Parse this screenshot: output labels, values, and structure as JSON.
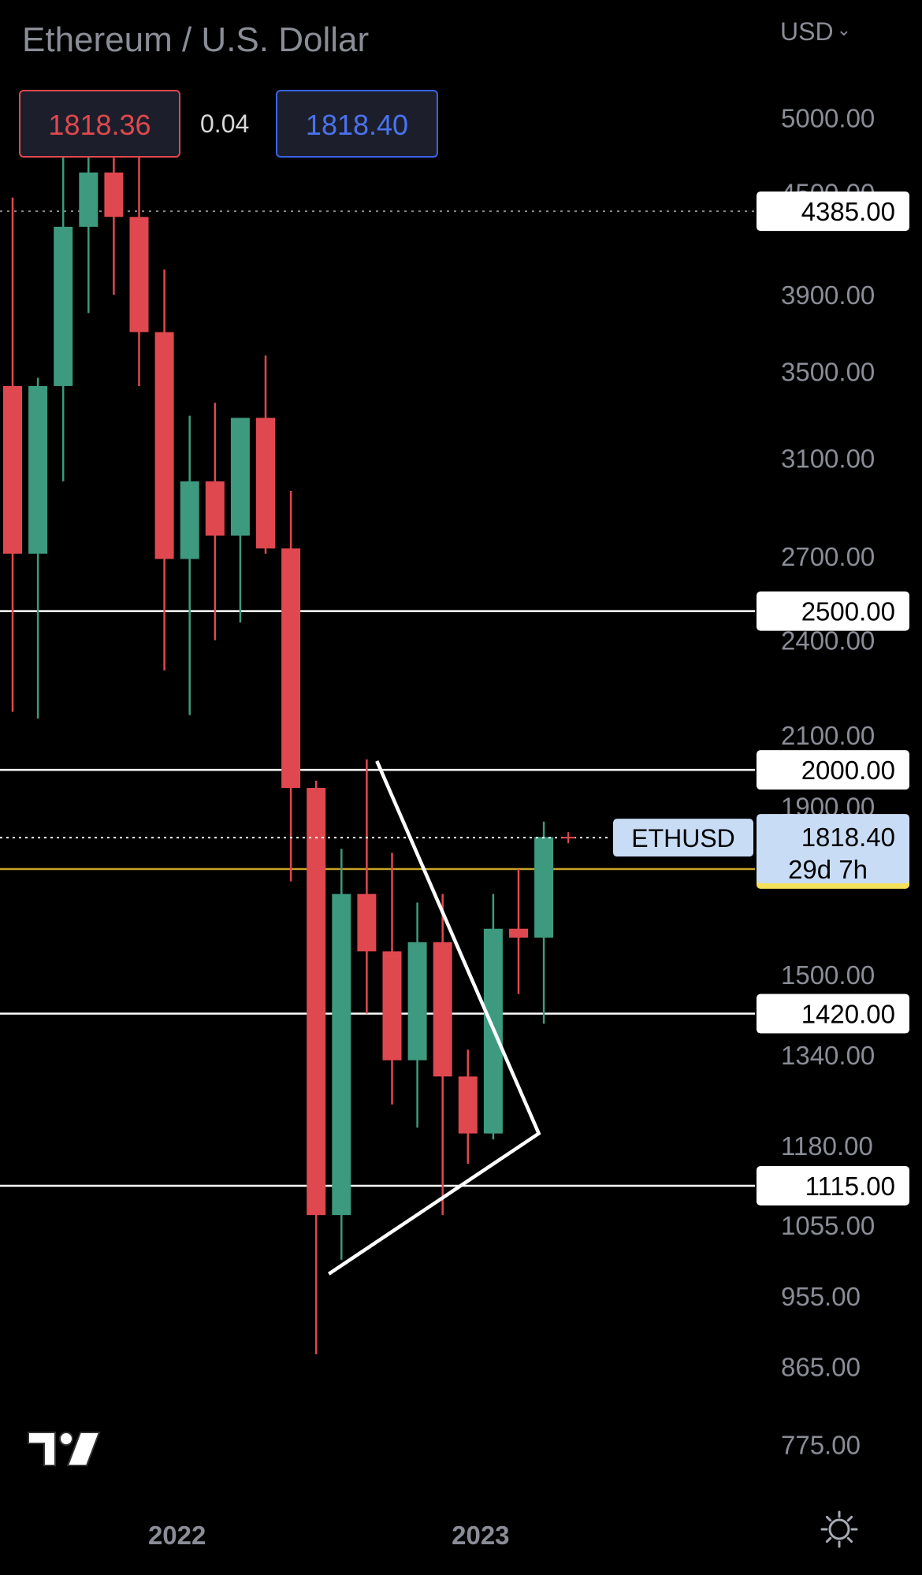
{
  "header": {
    "title": "Ethereum / U.S. Dollar",
    "currency": "USD",
    "bid": "1818.36",
    "spread": "0.04",
    "ask": "1818.40"
  },
  "chart_data": {
    "type": "candlestick",
    "title": "Ethereum / U.S. Dollar",
    "y_scale": "log",
    "ylim": [
      720,
      5400
    ],
    "x_ticks": [
      {
        "label": "2022",
        "index": 6.5
      },
      {
        "label": "2023",
        "index": 18.5
      }
    ],
    "y_ticks": [
      "5000.00",
      "4500.00",
      "3900.00",
      "3500.00",
      "3100.00",
      "2700.00",
      "2400.00",
      "2100.00",
      "1900.00",
      "1500.00",
      "1340.00",
      "1180.00",
      "1055.00",
      "955.00",
      "865.00",
      "775.00"
    ],
    "candles": [
      {
        "o": 3430,
        "h": 4470,
        "l": 2170,
        "c": 2710
      },
      {
        "o": 2710,
        "h": 3470,
        "l": 2150,
        "c": 3430
      },
      {
        "o": 3430,
        "h": 4780,
        "l": 3000,
        "c": 4290
      },
      {
        "o": 4290,
        "h": 4880,
        "l": 3800,
        "c": 4630
      },
      {
        "o": 4630,
        "h": 4890,
        "l": 3900,
        "c": 4350
      },
      {
        "o": 4350,
        "h": 4770,
        "l": 3430,
        "c": 3700
      },
      {
        "o": 3700,
        "h": 4040,
        "l": 2300,
        "c": 2690
      },
      {
        "o": 2690,
        "h": 3290,
        "l": 2160,
        "c": 3000
      },
      {
        "o": 3000,
        "h": 3350,
        "l": 2400,
        "c": 2780
      },
      {
        "o": 2780,
        "h": 3280,
        "l": 2460,
        "c": 3280
      },
      {
        "o": 3280,
        "h": 3580,
        "l": 2710,
        "c": 2730
      },
      {
        "o": 2730,
        "h": 2960,
        "l": 1710,
        "c": 1950
      },
      {
        "o": 1950,
        "h": 1970,
        "l": 880,
        "c": 1070
      },
      {
        "o": 1070,
        "h": 1790,
        "l": 1005,
        "c": 1680
      },
      {
        "o": 1680,
        "h": 2030,
        "l": 1420,
        "c": 1550
      },
      {
        "o": 1550,
        "h": 1780,
        "l": 1250,
        "c": 1330
      },
      {
        "o": 1330,
        "h": 1660,
        "l": 1210,
        "c": 1570
      },
      {
        "o": 1570,
        "h": 1680,
        "l": 1070,
        "c": 1300
      },
      {
        "o": 1300,
        "h": 1350,
        "l": 1150,
        "c": 1200
      },
      {
        "o": 1200,
        "h": 1680,
        "l": 1190,
        "c": 1600
      },
      {
        "o": 1600,
        "h": 1740,
        "l": 1460,
        "c": 1580
      },
      {
        "o": 1580,
        "h": 1860,
        "l": 1400,
        "c": 1820
      }
    ],
    "horizontal_levels": [
      {
        "value": 4385,
        "label": "4385.00",
        "style": "dotted",
        "color": "#8a8a8a"
      },
      {
        "value": 2500,
        "label": "2500.00",
        "style": "solid",
        "color": "#ffffff"
      },
      {
        "value": 2000,
        "label": "2000.00",
        "style": "solid",
        "color": "#ffffff"
      },
      {
        "value": 1740,
        "label": "1740.00",
        "style": "solid",
        "color": "#c9a227",
        "label_bg": "#f6e15a"
      },
      {
        "value": 1420,
        "label": "1420.00",
        "style": "solid",
        "color": "#ffffff"
      },
      {
        "value": 1115,
        "label": "1115.00",
        "style": "solid",
        "color": "#ffffff"
      }
    ],
    "current_price": {
      "symbol": "ETHUSD",
      "value": 1818.4,
      "label": "1818.40",
      "countdown": "29d 7h"
    },
    "triangle": [
      {
        "index": 14.4,
        "value": 2025
      },
      {
        "index": 20.8,
        "value": 1200
      },
      {
        "index": 12.5,
        "value": 985
      }
    ],
    "colors": {
      "up": "#3d9a7f",
      "down": "#e0484f",
      "background": "#000000",
      "axis_text": "#8a8d96"
    }
  }
}
